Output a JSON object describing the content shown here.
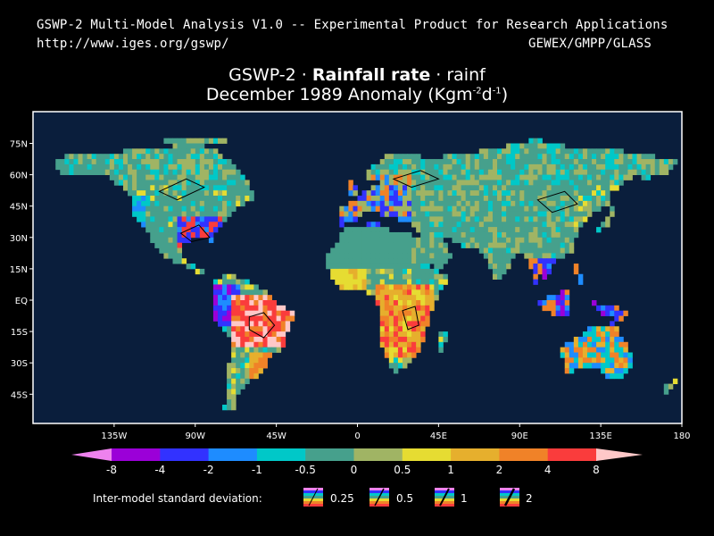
{
  "header": {
    "line1": "GSWP-2 Multi-Model Analysis V1.0 -- Experimental Product for Research Applications",
    "url": "http://www.iges.org/gswp/",
    "org": "GEWEX/GMPP/GLASS"
  },
  "title": {
    "prefix": "GSWP-2 · ",
    "bold": "Rainfall rate",
    "suffix": " · rainf",
    "line2": "December 1989 Anomaly (Kgm",
    "sup1": "-2",
    "mid": "d",
    "sup2": "-1",
    "end": ")"
  },
  "chart_data": {
    "type": "heatmap",
    "lat_labels": [
      "75N",
      "60N",
      "45N",
      "30N",
      "15N",
      "EQ",
      "15S",
      "30S",
      "45S"
    ],
    "lon_labels": [
      "135W",
      "90W",
      "45W",
      "0",
      "45E",
      "90E",
      "135E",
      "180"
    ],
    "colorbar": {
      "labels": [
        "-8",
        "-4",
        "-2",
        "-1",
        "-0.5",
        "0",
        "0.5",
        "1",
        "2",
        "4",
        "8"
      ],
      "colors": [
        "#ee82ee",
        "#9b00d8",
        "#3232ff",
        "#1e8cff",
        "#00c8c8",
        "#46a08c",
        "#a0b464",
        "#e6dc32",
        "#e6af2d",
        "#f08228",
        "#fa3c3c",
        "#ffc8c8"
      ]
    },
    "ocean_color": "#0a1e3c",
    "sd_legend": {
      "label": "Inter-model standard deviation:",
      "values": [
        "0.25",
        "0.5",
        "1",
        "2"
      ]
    }
  }
}
